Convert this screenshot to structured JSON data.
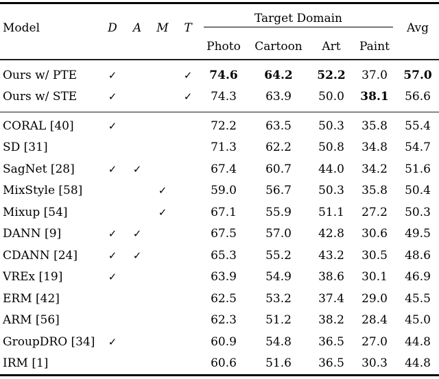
{
  "checkmark": "✓",
  "header": {
    "model": "Model",
    "flags": [
      "D",
      "A",
      "M",
      "T"
    ],
    "group": "Target Domain",
    "domains": [
      "Photo",
      "Cartoon",
      "Art",
      "Paint"
    ],
    "avg": "Avg"
  },
  "groups": [
    {
      "rows": [
        {
          "model": "Ours w/ PTE",
          "flags": [
            true,
            false,
            false,
            true
          ],
          "values": [
            "74.6",
            "64.2",
            "52.2",
            "37.0"
          ],
          "bold": [
            true,
            true,
            true,
            false
          ],
          "avg": "57.0",
          "avg_bold": true
        },
        {
          "model": "Ours w/ STE",
          "flags": [
            true,
            false,
            false,
            true
          ],
          "values": [
            "74.3",
            "63.9",
            "50.0",
            "38.1"
          ],
          "bold": [
            false,
            false,
            false,
            true
          ],
          "avg": "56.6",
          "avg_bold": false
        }
      ]
    },
    {
      "rows": [
        {
          "model": "CORAL [40]",
          "flags": [
            true,
            false,
            false,
            false
          ],
          "values": [
            "72.2",
            "63.5",
            "50.3",
            "35.8"
          ],
          "bold": [
            false,
            false,
            false,
            false
          ],
          "avg": "55.4",
          "avg_bold": false
        },
        {
          "model": "SD [31]",
          "flags": [
            false,
            false,
            false,
            false
          ],
          "values": [
            "71.3",
            "62.2",
            "50.8",
            "34.8"
          ],
          "bold": [
            false,
            false,
            false,
            false
          ],
          "avg": "54.7",
          "avg_bold": false
        },
        {
          "model": "SagNet [28]",
          "flags": [
            true,
            true,
            false,
            false
          ],
          "values": [
            "67.4",
            "60.7",
            "44.0",
            "34.2"
          ],
          "bold": [
            false,
            false,
            false,
            false
          ],
          "avg": "51.6",
          "avg_bold": false
        },
        {
          "model": "MixStyle [58]",
          "flags": [
            false,
            false,
            true,
            false
          ],
          "values": [
            "59.0",
            "56.7",
            "50.3",
            "35.8"
          ],
          "bold": [
            false,
            false,
            false,
            false
          ],
          "avg": "50.4",
          "avg_bold": false
        },
        {
          "model": "Mixup [54]",
          "flags": [
            false,
            false,
            true,
            false
          ],
          "values": [
            "67.1",
            "55.9",
            "51.1",
            "27.2"
          ],
          "bold": [
            false,
            false,
            false,
            false
          ],
          "avg": "50.3",
          "avg_bold": false
        },
        {
          "model": "DANN [9]",
          "flags": [
            true,
            true,
            false,
            false
          ],
          "values": [
            "67.5",
            "57.0",
            "42.8",
            "30.6"
          ],
          "bold": [
            false,
            false,
            false,
            false
          ],
          "avg": "49.5",
          "avg_bold": false
        },
        {
          "model": "CDANN [24]",
          "flags": [
            true,
            true,
            false,
            false
          ],
          "values": [
            "65.3",
            "55.2",
            "43.2",
            "30.5"
          ],
          "bold": [
            false,
            false,
            false,
            false
          ],
          "avg": "48.6",
          "avg_bold": false
        },
        {
          "model": "VREx [19]",
          "flags": [
            true,
            false,
            false,
            false
          ],
          "values": [
            "63.9",
            "54.9",
            "38.6",
            "30.1"
          ],
          "bold": [
            false,
            false,
            false,
            false
          ],
          "avg": "46.9",
          "avg_bold": false
        },
        {
          "model": "ERM [42]",
          "flags": [
            false,
            false,
            false,
            false
          ],
          "values": [
            "62.5",
            "53.2",
            "37.4",
            "29.0"
          ],
          "bold": [
            false,
            false,
            false,
            false
          ],
          "avg": "45.5",
          "avg_bold": false
        },
        {
          "model": "ARM [56]",
          "flags": [
            false,
            false,
            false,
            false
          ],
          "values": [
            "62.3",
            "51.2",
            "38.2",
            "28.4"
          ],
          "bold": [
            false,
            false,
            false,
            false
          ],
          "avg": "45.0",
          "avg_bold": false
        },
        {
          "model": "GroupDRO [34]",
          "flags": [
            true,
            false,
            false,
            false
          ],
          "values": [
            "60.9",
            "54.8",
            "36.5",
            "27.0"
          ],
          "bold": [
            false,
            false,
            false,
            false
          ],
          "avg": "44.8",
          "avg_bold": false
        },
        {
          "model": "IRM [1]",
          "flags": [
            false,
            false,
            false,
            false
          ],
          "values": [
            "60.6",
            "51.6",
            "36.5",
            "30.3"
          ],
          "bold": [
            false,
            false,
            false,
            false
          ],
          "avg": "44.8",
          "avg_bold": false
        }
      ]
    }
  ]
}
